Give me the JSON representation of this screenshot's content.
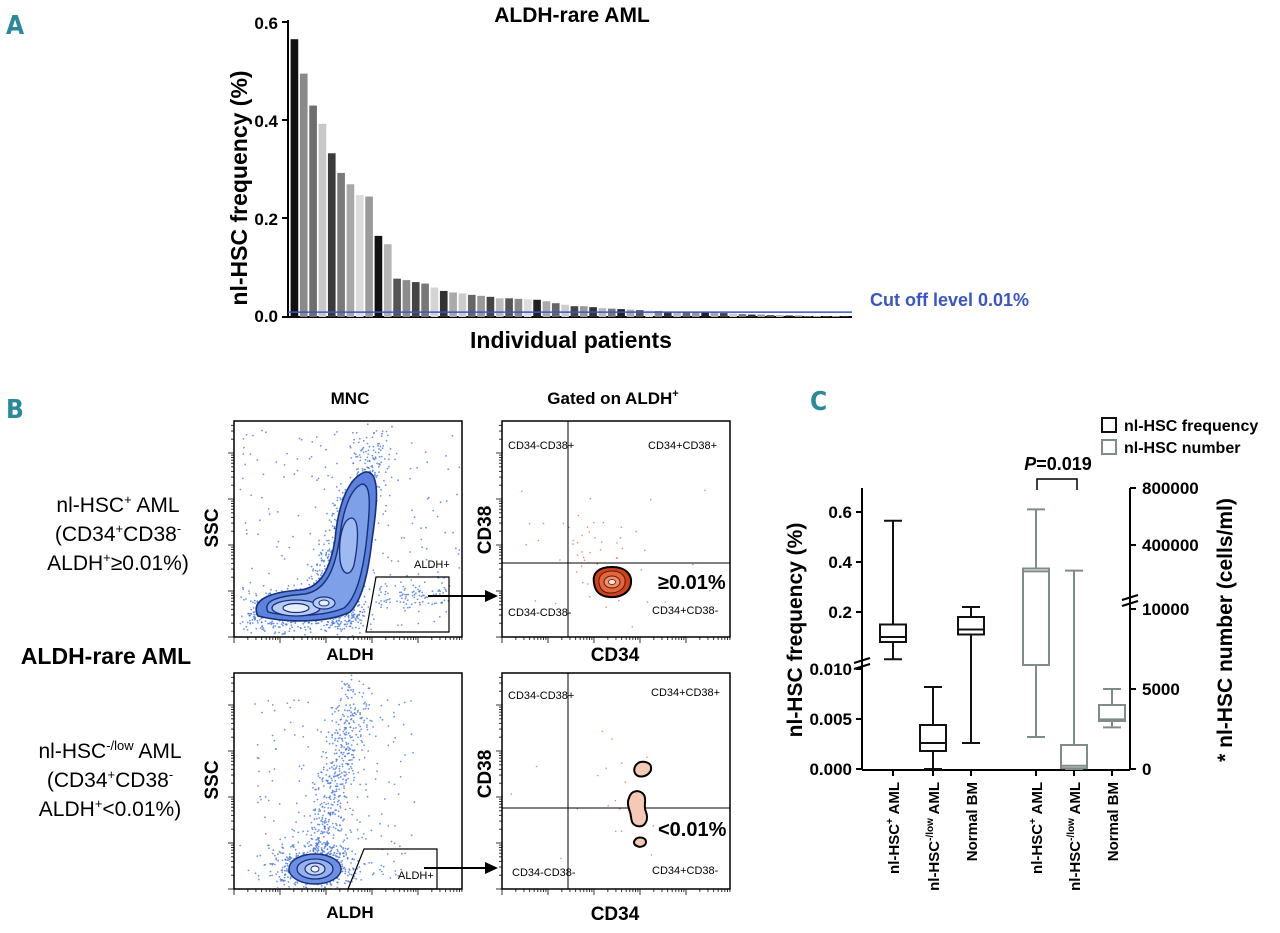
{
  "colors": {
    "panel_letter": "#2b8a9a",
    "cutoff": "#3a55c8",
    "flow_dots": "#3d6fe0",
    "black_box": "#111111",
    "grey_box": "#7f8c8a",
    "contour_orange": "#d2411b",
    "contour_pink": "#f6c9b7"
  },
  "panel_a": {
    "letter": "A",
    "chart_data": {
      "type": "bar",
      "title": "ALDH-rare AML",
      "xlabel": "Individual patients",
      "ylabel": "nl-HSC frequency (%)",
      "ylim": [
        0,
        0.6
      ],
      "yticks": [
        "0.0",
        "0.2",
        "0.4",
        "0.6"
      ],
      "cutoff_label": "Cut off level 0.01%",
      "cutoff_value": 0.01,
      "values": [
        0.565,
        0.495,
        0.43,
        0.393,
        0.333,
        0.293,
        0.27,
        0.248,
        0.245,
        0.165,
        0.148,
        0.078,
        0.075,
        0.071,
        0.068,
        0.06,
        0.053,
        0.05,
        0.048,
        0.045,
        0.043,
        0.041,
        0.038,
        0.038,
        0.037,
        0.036,
        0.035,
        0.032,
        0.028,
        0.025,
        0.022,
        0.022,
        0.02,
        0.018,
        0.017,
        0.016,
        0.015,
        0.014,
        0.013,
        0.012,
        0.011,
        0.011,
        0.01,
        0.01,
        0.009,
        0.009,
        0.008,
        0.007,
        0.006,
        0.005,
        0.005,
        0.004,
        0.004,
        0.003,
        0.003,
        0.002,
        0.002,
        0.002,
        0.001,
        0.001
      ],
      "bar_shades": [
        "#111111",
        "#8a8a8a",
        "#6e6e6e",
        "#c8c8c8",
        "#3b3b3b",
        "#7a7a7a",
        "#a8a8a8",
        "#dcdcdc",
        "#9a9a9a",
        "#111111",
        "#b4b4b4",
        "#555555",
        "#8c8c8c",
        "#444444",
        "#777777",
        "#d4d4d4",
        "#333333",
        "#aaaaaa",
        "#cccccc",
        "#666666",
        "#999999",
        "#444444",
        "#bbbbbb",
        "#555555",
        "#888888",
        "#dddddd",
        "#222222",
        "#aaaaaa",
        "#666666",
        "#cccccc",
        "#444444",
        "#999999",
        "#333333",
        "#bbbbbb",
        "#777777",
        "#222222",
        "#aaaaaa",
        "#555555",
        "#dddddd",
        "#888888",
        "#333333",
        "#bbbbbb",
        "#666666",
        "#999999",
        "#222222",
        "#aaaaaa",
        "#444444",
        "#cccccc",
        "#777777",
        "#333333",
        "#999999",
        "#555555",
        "#bbbbbb",
        "#222222",
        "#888888",
        "#666666",
        "#aaaaaa",
        "#444444",
        "#999999",
        "#333333"
      ]
    }
  },
  "panel_b": {
    "letter": "B",
    "col_mnc": "MNC",
    "col_gated_prefix": "Gated on ALDH",
    "col_gated_sup": "+",
    "row_title": "ALDH-rare AML",
    "row1": {
      "l1_pre": "nl-HSC",
      "l1_sup": "+",
      "l1_post": " AML",
      "l2_pre": "(CD34",
      "l2_sup1": "+",
      "l2_mid": "CD38",
      "l2_sup2": "-",
      "l3_pre": "ALDH",
      "l3_sup": "+",
      "l3_post": "≥0.01%)"
    },
    "row2": {
      "l1_pre": "nl-HSC",
      "l1_sup": "-/low",
      "l1_post": " AML",
      "l2_pre": "(CD34",
      "l2_sup1": "+",
      "l2_mid": "CD38",
      "l2_sup2": "-",
      "l3_pre": "ALDH",
      "l3_sup": "+",
      "l3_post": "<0.01%)"
    },
    "ssc": "SSC",
    "aldh": "ALDH",
    "cd38": "CD38",
    "cd34": "CD34",
    "gate_label": "ALDH+",
    "q_ul": "CD34-CD38+",
    "q_ur": "CD34+CD38+",
    "q_ll": "CD34-CD38-",
    "q_lr": "CD34+CD38-",
    "pct_top": "≥0.01%",
    "pct_bottom": "<0.01%"
  },
  "panel_c": {
    "letter": "C",
    "legend": [
      "nl-HSC frequency",
      "nl-HSC number"
    ],
    "p_italic": "P",
    "p_value": "=0.019",
    "ylabel_left": "nl-HSC frequency (%)",
    "ylabel_right": "* nl-HSC number (cells/ml)",
    "left_ticks_top": [
      "0.2",
      "0.4",
      "0.6"
    ],
    "left_ticks_bottom": [
      "0.000",
      "0.005",
      "0.010"
    ],
    "right_ticks_top": [
      "400000",
      "800000"
    ],
    "right_ticks_bottom": [
      "0",
      "5000",
      "10000"
    ],
    "categories": [
      {
        "pre": "nl-HSC",
        "sup": "+",
        "post": " AML"
      },
      {
        "pre": "nl-HSC",
        "sup": "-/low",
        "post": " AML"
      },
      {
        "pre": "Normal BM",
        "sup": "",
        "post": ""
      },
      {
        "pre": "nl-HSC",
        "sup": "+",
        "post": " AML"
      },
      {
        "pre": "nl-HSC",
        "sup": "-/low",
        "post": " AML"
      },
      {
        "pre": "Normal BM",
        "sup": "",
        "post": ""
      }
    ],
    "chart_data": {
      "type": "box",
      "frequency_series": {
        "name": "nl-HSC frequency",
        "boxes": [
          {
            "category": "nl-HSC+ AML",
            "min": 0.011,
            "q1": 0.08,
            "median": 0.1,
            "q3": 0.15,
            "max": 0.565
          },
          {
            "category": "nl-HSC-/low AML",
            "min": 0.0,
            "q1": 0.0018,
            "median": 0.0026,
            "q3": 0.0044,
            "max": 0.0082
          },
          {
            "category": "Normal BM",
            "min": 0.0026,
            "q1": 0.11,
            "median": 0.13,
            "q3": 0.18,
            "max": 0.22
          }
        ]
      },
      "number_series": {
        "name": "nl-HSC number",
        "boxes": [
          {
            "category": "nl-HSC+ AML",
            "min": 2000,
            "q1": 6500,
            "median": 215000,
            "q3": 235000,
            "max": 650000
          },
          {
            "category": "nl-HSC-/low AML",
            "min": 0,
            "q1": 50,
            "median": 200,
            "q3": 1500,
            "max": 220000
          },
          {
            "category": "Normal BM",
            "min": 2600,
            "q1": 3000,
            "median": 3100,
            "q3": 4000,
            "max": 5000
          }
        ]
      }
    }
  }
}
